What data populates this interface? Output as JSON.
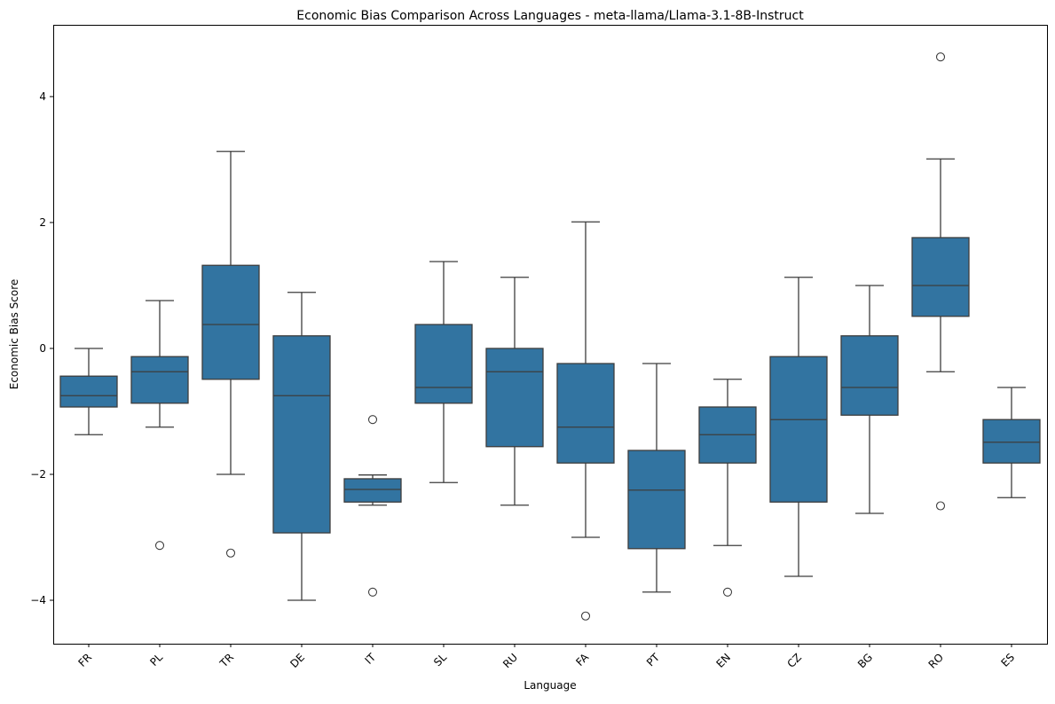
{
  "chart_data": {
    "type": "box",
    "title": "Economic Bias Comparison Across Languages - meta-llama/Llama-3.1-8B-Instruct",
    "xlabel": "Language",
    "ylabel": "Economic Bias Score",
    "ylim": [
      -4.69,
      5.14
    ],
    "yticks": [
      -4,
      -2,
      0,
      2,
      4
    ],
    "ytick_labels": [
      "−4",
      "−2",
      "0",
      "2",
      "4"
    ],
    "grid": false,
    "color": "#3274a1",
    "categories": [
      "FR",
      "PL",
      "TR",
      "DE",
      "IT",
      "SL",
      "RU",
      "FA",
      "PT",
      "EN",
      "CZ",
      "BG",
      "RO",
      "ES"
    ],
    "boxes": [
      {
        "whislo": -1.37,
        "q1": -0.93,
        "med": -0.75,
        "q3": -0.44,
        "whishi": 0.0,
        "fliers": []
      },
      {
        "whislo": -1.25,
        "q1": -0.87,
        "med": -0.37,
        "q3": -0.13,
        "whishi": 0.76,
        "fliers": [
          -3.13
        ]
      },
      {
        "whislo": -2.0,
        "q1": -0.49,
        "med": 0.38,
        "q3": 1.32,
        "whishi": 3.13,
        "fliers": [
          -3.25
        ]
      },
      {
        "whislo": -4.0,
        "q1": -2.93,
        "med": -0.75,
        "q3": 0.2,
        "whishi": 0.89,
        "fliers": []
      },
      {
        "whislo": -2.49,
        "q1": -2.44,
        "med": -2.24,
        "q3": -2.07,
        "whishi": -2.01,
        "fliers": [
          -1.13,
          -3.87
        ]
      },
      {
        "whislo": -2.13,
        "q1": -0.87,
        "med": -0.62,
        "q3": 0.38,
        "whishi": 1.38,
        "fliers": []
      },
      {
        "whislo": -2.49,
        "q1": -1.56,
        "med": -0.37,
        "q3": 0.0,
        "whishi": 1.13,
        "fliers": []
      },
      {
        "whislo": -3.0,
        "q1": -1.82,
        "med": -1.25,
        "q3": -0.24,
        "whishi": 2.01,
        "fliers": [
          -4.25
        ]
      },
      {
        "whislo": -3.87,
        "q1": -3.18,
        "med": -2.25,
        "q3": -1.62,
        "whishi": -0.24,
        "fliers": []
      },
      {
        "whislo": -3.13,
        "q1": -1.82,
        "med": -1.37,
        "q3": -0.93,
        "whishi": -0.49,
        "fliers": [
          -3.87
        ]
      },
      {
        "whislo": -3.62,
        "q1": -2.44,
        "med": -1.13,
        "q3": -0.13,
        "whishi": 1.13,
        "fliers": []
      },
      {
        "whislo": -2.62,
        "q1": -1.06,
        "med": -0.62,
        "q3": 0.2,
        "whishi": 1.0,
        "fliers": []
      },
      {
        "whislo": -0.37,
        "q1": 0.51,
        "med": 1.0,
        "q3": 1.76,
        "whishi": 3.01,
        "fliers": [
          4.63,
          -2.5
        ]
      },
      {
        "whislo": -2.37,
        "q1": -1.82,
        "med": -1.49,
        "q3": -1.13,
        "whishi": -0.62,
        "fliers": []
      }
    ]
  }
}
